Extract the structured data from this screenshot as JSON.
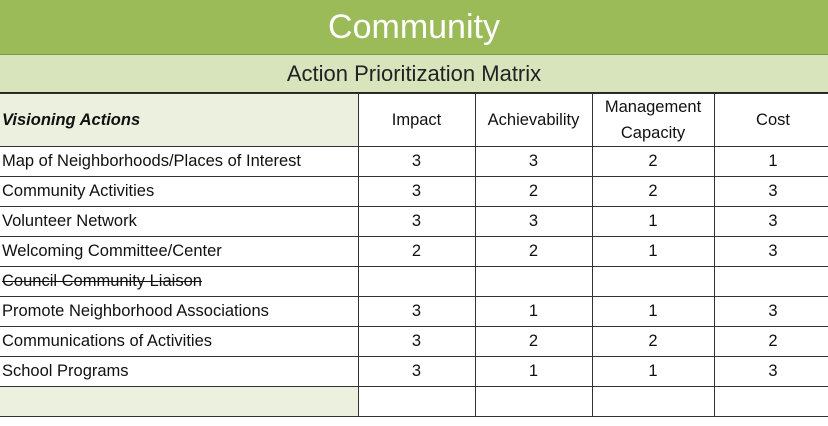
{
  "header": {
    "title": "Community",
    "subtitle": "Action Prioritization Matrix"
  },
  "table": {
    "columns": [
      "Visioning Actions",
      "Impact",
      "Achievability",
      "Management Capacity",
      "Cost"
    ],
    "rows": [
      {
        "action": "Map of Neighborhoods/Places of Interest",
        "scores": [
          3,
          3,
          2,
          1
        ]
      },
      {
        "action": "Community Activities",
        "scores": [
          3,
          2,
          2,
          3
        ]
      },
      {
        "action": "Volunteer Network",
        "scores": [
          3,
          3,
          1,
          3
        ]
      },
      {
        "action": "Welcoming Committee/Center",
        "scores": [
          2,
          2,
          1,
          3
        ]
      },
      {
        "action": "Council Community Liaison",
        "struck": true
      },
      {
        "action": "Promote Neighborhood Associations",
        "scores": [
          3,
          1,
          1,
          3
        ]
      },
      {
        "action": "Communications of Activities",
        "scores": [
          3,
          2,
          2,
          2
        ]
      },
      {
        "action": "School Programs",
        "scores": [
          3,
          1,
          1,
          3
        ]
      }
    ]
  }
}
